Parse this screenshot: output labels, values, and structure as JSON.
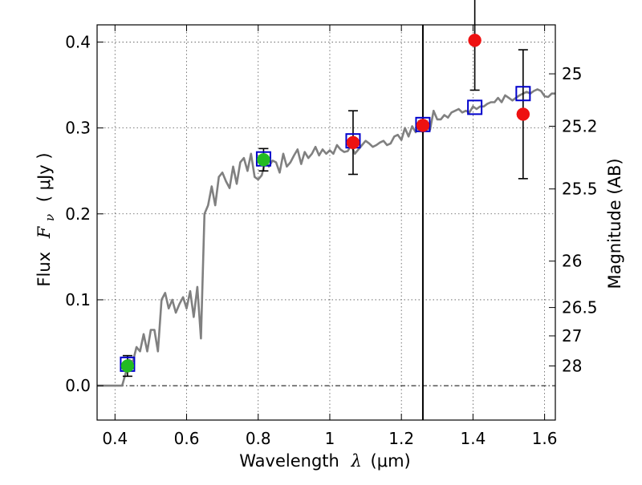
{
  "chart_data": {
    "type": "scatter",
    "xlabel_prefix": "Wavelength",
    "xlabel_symbol": "λ",
    "xlabel_unit": "(μm)",
    "ylabel_prefix": "Flux",
    "ylabel_symbol": "F",
    "ylabel_subscript": "ν",
    "ylabel_unit": "( μJy )",
    "y2label": "Magnitude (AB)",
    "xlim": [
      0.35,
      1.63
    ],
    "ylim": [
      -0.04,
      0.42
    ],
    "xticks": [
      0.4,
      0.6,
      0.8,
      1.0,
      1.2,
      1.4,
      1.6
    ],
    "xtick_labels": [
      "0.4",
      "0.6",
      "0.8",
      "1",
      "1.2",
      "1.4",
      "1.6"
    ],
    "yticks": [
      0.0,
      0.1,
      0.2,
      0.3,
      0.4
    ],
    "ytick_labels": [
      "0.0",
      "0.1",
      "0.2",
      "0.3",
      "0.4"
    ],
    "y2ticks": [
      {
        "label": "25",
        "flux": 0.363
      },
      {
        "label": "25.2",
        "flux": 0.302
      },
      {
        "label": "25.5",
        "flux": 0.229
      },
      {
        "label": "26",
        "flux": 0.145
      },
      {
        "label": "26.5",
        "flux": 0.091
      },
      {
        "label": "27",
        "flux": 0.058
      },
      {
        "label": "28",
        "flux": 0.023
      }
    ],
    "grid": true,
    "zero_line": 0.0,
    "vertical_line_x": 1.26,
    "colors": {
      "sed_line": "#808080",
      "photometry_green": "#22bb22",
      "photometry_red": "#ee1111",
      "model_square": "#0000cc",
      "error_bar": "#000000",
      "vline": "#000000",
      "grid": "#555555"
    },
    "series": [
      {
        "kind": "sed-line",
        "x": [
          0.35,
          0.42,
          0.43,
          0.44,
          0.45,
          0.46,
          0.47,
          0.48,
          0.49,
          0.5,
          0.51,
          0.52,
          0.53,
          0.54,
          0.55,
          0.56,
          0.57,
          0.58,
          0.59,
          0.6,
          0.61,
          0.62,
          0.63,
          0.64,
          0.65,
          0.66,
          0.67,
          0.68,
          0.69,
          0.7,
          0.71,
          0.72,
          0.73,
          0.74,
          0.75,
          0.76,
          0.77,
          0.78,
          0.79,
          0.8,
          0.81,
          0.82,
          0.83,
          0.84,
          0.85,
          0.86,
          0.87,
          0.88,
          0.89,
          0.9,
          0.91,
          0.92,
          0.93,
          0.94,
          0.95,
          0.96,
          0.97,
          0.98,
          0.99,
          1.0,
          1.01,
          1.02,
          1.03,
          1.04,
          1.05,
          1.06,
          1.07,
          1.08,
          1.09,
          1.1,
          1.11,
          1.12,
          1.13,
          1.14,
          1.15,
          1.16,
          1.17,
          1.18,
          1.19,
          1.2,
          1.21,
          1.22,
          1.23,
          1.24,
          1.25,
          1.26,
          1.27,
          1.28,
          1.29,
          1.3,
          1.31,
          1.32,
          1.33,
          1.34,
          1.35,
          1.36,
          1.37,
          1.38,
          1.39,
          1.4,
          1.41,
          1.42,
          1.43,
          1.44,
          1.45,
          1.46,
          1.47,
          1.48,
          1.49,
          1.5,
          1.51,
          1.52,
          1.53,
          1.54,
          1.55,
          1.56,
          1.57,
          1.58,
          1.59,
          1.6,
          1.61,
          1.62,
          1.63
        ],
        "y": [
          0.0,
          0.0,
          0.015,
          0.03,
          0.028,
          0.045,
          0.04,
          0.06,
          0.04,
          0.065,
          0.065,
          0.04,
          0.1,
          0.108,
          0.09,
          0.1,
          0.085,
          0.095,
          0.103,
          0.09,
          0.11,
          0.08,
          0.115,
          0.055,
          0.2,
          0.21,
          0.232,
          0.21,
          0.243,
          0.248,
          0.238,
          0.23,
          0.255,
          0.235,
          0.26,
          0.265,
          0.25,
          0.27,
          0.243,
          0.24,
          0.245,
          0.262,
          0.255,
          0.262,
          0.26,
          0.248,
          0.27,
          0.255,
          0.26,
          0.268,
          0.275,
          0.258,
          0.272,
          0.265,
          0.27,
          0.278,
          0.268,
          0.275,
          0.27,
          0.274,
          0.27,
          0.28,
          0.275,
          0.272,
          0.273,
          0.28,
          0.27,
          0.275,
          0.28,
          0.285,
          0.282,
          0.278,
          0.28,
          0.283,
          0.285,
          0.28,
          0.282,
          0.29,
          0.292,
          0.286,
          0.3,
          0.29,
          0.302,
          0.295,
          0.305,
          0.295,
          0.3,
          0.298,
          0.32,
          0.31,
          0.31,
          0.315,
          0.312,
          0.318,
          0.32,
          0.322,
          0.318,
          0.32,
          0.318,
          0.325,
          0.322,
          0.325,
          0.325,
          0.328,
          0.33,
          0.33,
          0.335,
          0.33,
          0.338,
          0.335,
          0.332,
          0.335,
          0.338,
          0.34,
          0.342,
          0.34,
          0.343,
          0.345,
          0.343,
          0.337,
          0.336,
          0.34,
          0.34
        ]
      },
      {
        "kind": "model-squares",
        "points": [
          {
            "x": 0.435,
            "y": 0.025
          },
          {
            "x": 0.815,
            "y": 0.264
          },
          {
            "x": 1.065,
            "y": 0.285
          },
          {
            "x": 1.26,
            "y": 0.304
          },
          {
            "x": 1.405,
            "y": 0.324
          },
          {
            "x": 1.54,
            "y": 0.34
          }
        ]
      },
      {
        "kind": "photometry-green",
        "points": [
          {
            "x": 0.435,
            "y": 0.023,
            "err": 0.012
          },
          {
            "x": 0.815,
            "y": 0.263,
            "err": 0.013
          }
        ]
      },
      {
        "kind": "photometry-red",
        "points": [
          {
            "x": 1.065,
            "y": 0.283,
            "err": 0.037
          },
          {
            "x": 1.26,
            "y": 0.303,
            "err": 0.005
          },
          {
            "x": 1.405,
            "y": 0.402,
            "err": 0.058
          },
          {
            "x": 1.54,
            "y": 0.316,
            "err": 0.075
          }
        ]
      }
    ]
  }
}
